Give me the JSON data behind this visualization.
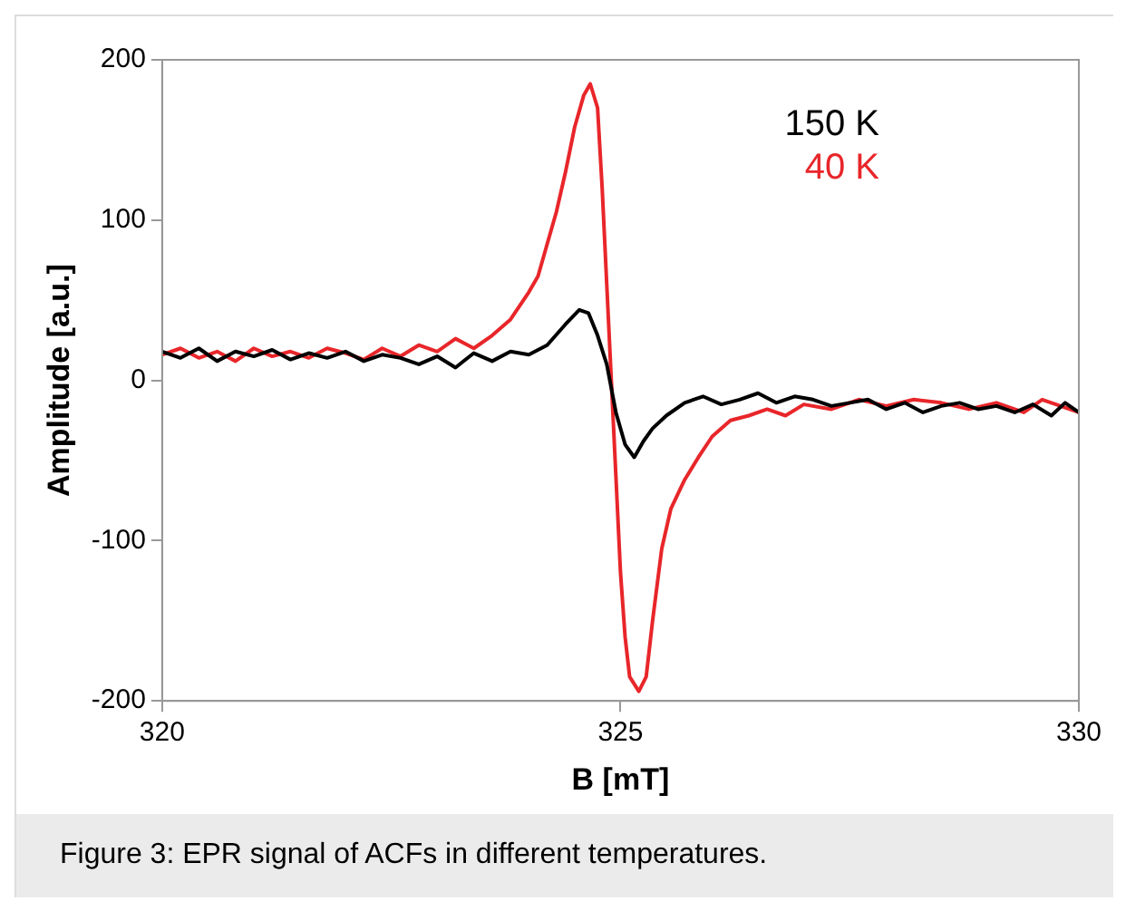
{
  "chart_data": {
    "type": "line",
    "xlabel": "B [mT]",
    "ylabel": "Amplitude [a.u.]",
    "xlim": [
      320,
      330
    ],
    "xticks": [
      320,
      325,
      330
    ],
    "ylim": [
      -200,
      200
    ],
    "yticks": [
      -200,
      -100,
      0,
      100,
      200
    ],
    "grid": false,
    "legend": "top right",
    "marker": "none",
    "line_style": "solid",
    "annotations": [
      "Figure 3: EPR signal of ACFs in different temperatures."
    ],
    "series": [
      {
        "name": "150 K",
        "color": "#000000",
        "x": [
          320.0,
          320.2,
          320.4,
          320.6,
          320.8,
          321.0,
          321.2,
          321.4,
          321.6,
          321.8,
          322.0,
          322.2,
          322.4,
          322.6,
          322.8,
          323.0,
          323.2,
          323.4,
          323.6,
          323.8,
          324.0,
          324.2,
          324.4,
          324.55,
          324.65,
          324.75,
          324.85,
          324.95,
          325.05,
          325.15,
          325.25,
          325.35,
          325.5,
          325.7,
          325.9,
          326.1,
          326.3,
          326.5,
          326.7,
          326.9,
          327.1,
          327.3,
          327.5,
          327.7,
          327.9,
          328.1,
          328.3,
          328.5,
          328.7,
          328.9,
          329.1,
          329.3,
          329.5,
          329.7,
          329.85,
          330.0
        ],
        "values": [
          18,
          14,
          20,
          12,
          18,
          15,
          19,
          13,
          17,
          14,
          18,
          12,
          16,
          14,
          10,
          15,
          8,
          17,
          12,
          18,
          16,
          22,
          35,
          44,
          42,
          28,
          10,
          -20,
          -40,
          -48,
          -38,
          -30,
          -22,
          -14,
          -10,
          -15,
          -12,
          -8,
          -14,
          -10,
          -12,
          -16,
          -14,
          -12,
          -18,
          -14,
          -20,
          -16,
          -14,
          -18,
          -16,
          -20,
          -15,
          -22,
          -14,
          -20
        ]
      },
      {
        "name": "40 K",
        "color": "#e8262a",
        "x": [
          320.0,
          320.2,
          320.4,
          320.6,
          320.8,
          321.0,
          321.2,
          321.4,
          321.6,
          321.8,
          322.0,
          322.2,
          322.4,
          322.6,
          322.8,
          323.0,
          323.2,
          323.4,
          323.6,
          323.8,
          324.0,
          324.1,
          324.2,
          324.3,
          324.4,
          324.5,
          324.6,
          324.67,
          324.75,
          324.8,
          324.85,
          324.9,
          324.95,
          325.0,
          325.05,
          325.1,
          325.2,
          325.28,
          325.35,
          325.45,
          325.55,
          325.7,
          325.85,
          326.0,
          326.2,
          326.4,
          326.6,
          326.8,
          327.0,
          327.3,
          327.6,
          327.9,
          328.2,
          328.5,
          328.8,
          329.1,
          329.4,
          329.6,
          329.8,
          330.0
        ],
        "values": [
          16,
          20,
          14,
          18,
          12,
          20,
          15,
          18,
          14,
          20,
          17,
          13,
          20,
          15,
          22,
          18,
          26,
          20,
          28,
          38,
          55,
          65,
          85,
          105,
          130,
          158,
          178,
          185,
          170,
          120,
          60,
          0,
          -60,
          -120,
          -160,
          -185,
          -194,
          -185,
          -150,
          -105,
          -80,
          -62,
          -48,
          -35,
          -25,
          -22,
          -18,
          -22,
          -15,
          -18,
          -12,
          -16,
          -12,
          -14,
          -18,
          -14,
          -20,
          -12,
          -16,
          -20
        ]
      }
    ]
  }
}
